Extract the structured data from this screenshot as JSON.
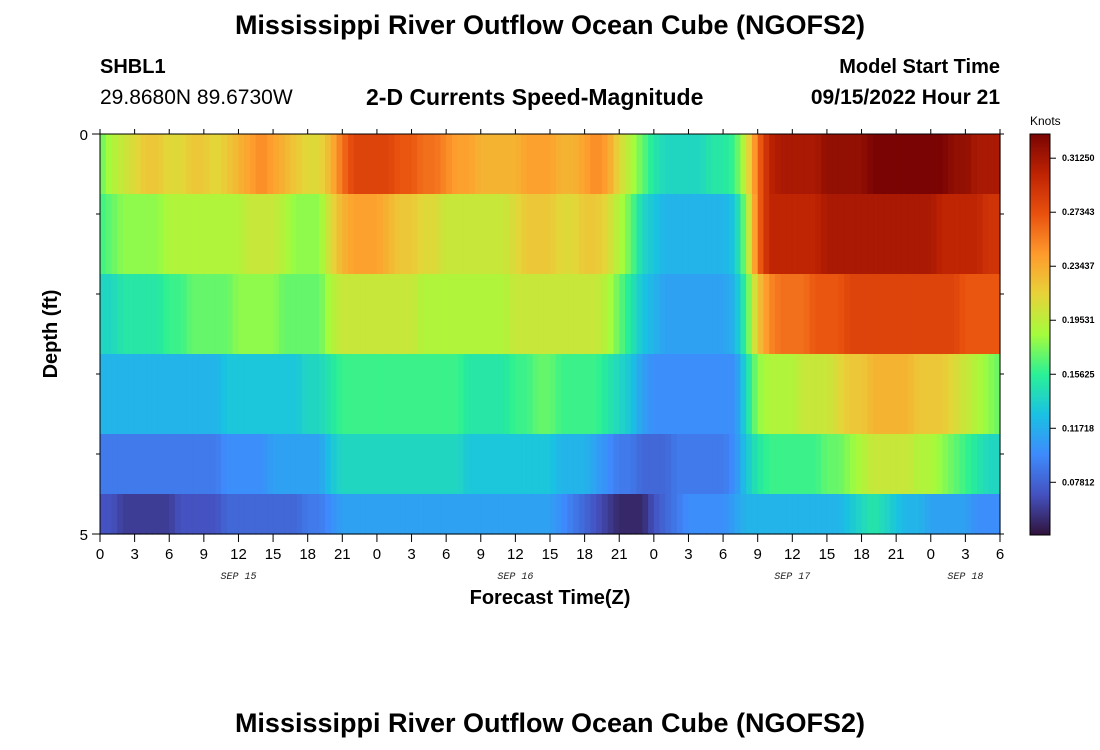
{
  "header": {
    "title": "Mississippi River Outflow Ocean Cube (NGOFS2)",
    "station": "SHBL1",
    "coords": "29.8680N  89.6730W",
    "subtitle": "2-D Currents Speed-Magnitude",
    "model_start_label": "Model Start Time",
    "model_start_value": "09/15/2022 Hour 21"
  },
  "footer": {
    "title": "Mississippi River Outflow Ocean Cube (NGOFS2)"
  },
  "chart_data": {
    "type": "heatmap",
    "xlabel": "Forecast Time(Z)",
    "ylabel": "Depth (ft)",
    "xlim_hours": [
      0,
      78
    ],
    "ylim": [
      0,
      5
    ],
    "y_ticks": [
      "0",
      "5"
    ],
    "x_ticks": [
      "0",
      "3",
      "6",
      "9",
      "12",
      "15",
      "18",
      "21",
      "0",
      "3",
      "6",
      "9",
      "12",
      "15",
      "18",
      "21",
      "0",
      "3",
      "6",
      "9",
      "12",
      "15",
      "18",
      "21",
      "0",
      "3",
      "6"
    ],
    "date_labels": [
      {
        "label": "SEP 15",
        "hour": 12
      },
      {
        "label": "SEP 16",
        "hour": 36
      },
      {
        "label": "SEP 17",
        "hour": 60
      },
      {
        "label": "SEP 18",
        "hour": 75
      }
    ],
    "colorbar": {
      "unit": "Knots",
      "min": 0.04,
      "max": 0.33,
      "colormap": "turbo",
      "ticks": [
        "0.07812",
        "0.11718",
        "0.15625",
        "0.19531",
        "0.23437",
        "0.27343",
        "0.31250"
      ],
      "tick_values": [
        0.07812,
        0.11718,
        0.15625,
        0.19531,
        0.23437,
        0.27343,
        0.3125
      ]
    },
    "layer_depths": [
      0.25,
      1.25,
      2.25,
      3.25,
      4.25,
      4.75
    ],
    "keyframe_hours": [
      0,
      1,
      2,
      3,
      4,
      5,
      6,
      7,
      8,
      9,
      10,
      11,
      12,
      13,
      14,
      15,
      16,
      17,
      18,
      19,
      20,
      21,
      22,
      23,
      24,
      25,
      26,
      27,
      28,
      29,
      30,
      31,
      32,
      33,
      34,
      35,
      36,
      37,
      38,
      39,
      40,
      41,
      42,
      43,
      44,
      45,
      46,
      47,
      48,
      49,
      50,
      51,
      52,
      53,
      54,
      55,
      56,
      57,
      58,
      59,
      60,
      61,
      62,
      63,
      64,
      65,
      66,
      67,
      68,
      69,
      70,
      71,
      72,
      73,
      74,
      75,
      76,
      77,
      78
    ],
    "layers": [
      [
        0.17,
        0.19,
        0.2,
        0.21,
        0.22,
        0.22,
        0.21,
        0.21,
        0.22,
        0.22,
        0.21,
        0.22,
        0.23,
        0.24,
        0.25,
        0.24,
        0.23,
        0.22,
        0.21,
        0.21,
        0.23,
        0.26,
        0.28,
        0.28,
        0.28,
        0.28,
        0.27,
        0.27,
        0.26,
        0.26,
        0.25,
        0.24,
        0.24,
        0.23,
        0.23,
        0.23,
        0.23,
        0.24,
        0.24,
        0.24,
        0.23,
        0.23,
        0.24,
        0.25,
        0.24,
        0.21,
        0.19,
        0.17,
        0.15,
        0.14,
        0.14,
        0.14,
        0.14,
        0.15,
        0.15,
        0.16,
        0.2,
        0.26,
        0.3,
        0.31,
        0.31,
        0.31,
        0.31,
        0.32,
        0.32,
        0.32,
        0.32,
        0.33,
        0.33,
        0.33,
        0.33,
        0.33,
        0.33,
        0.33,
        0.32,
        0.32,
        0.31,
        0.31,
        0.31
      ],
      [
        0.16,
        0.17,
        0.18,
        0.18,
        0.18,
        0.18,
        0.19,
        0.19,
        0.19,
        0.19,
        0.19,
        0.19,
        0.19,
        0.2,
        0.2,
        0.2,
        0.19,
        0.18,
        0.18,
        0.18,
        0.21,
        0.23,
        0.24,
        0.24,
        0.24,
        0.23,
        0.22,
        0.22,
        0.21,
        0.21,
        0.2,
        0.2,
        0.2,
        0.2,
        0.2,
        0.2,
        0.21,
        0.22,
        0.22,
        0.22,
        0.21,
        0.21,
        0.22,
        0.22,
        0.21,
        0.19,
        0.17,
        0.14,
        0.13,
        0.12,
        0.12,
        0.12,
        0.12,
        0.12,
        0.12,
        0.13,
        0.18,
        0.26,
        0.3,
        0.3,
        0.3,
        0.3,
        0.3,
        0.31,
        0.31,
        0.31,
        0.31,
        0.31,
        0.31,
        0.31,
        0.31,
        0.31,
        0.31,
        0.3,
        0.3,
        0.3,
        0.3,
        0.29,
        0.29
      ],
      [
        0.14,
        0.14,
        0.15,
        0.15,
        0.15,
        0.15,
        0.16,
        0.16,
        0.17,
        0.17,
        0.17,
        0.17,
        0.18,
        0.18,
        0.18,
        0.18,
        0.17,
        0.17,
        0.17,
        0.17,
        0.19,
        0.2,
        0.2,
        0.2,
        0.2,
        0.2,
        0.2,
        0.2,
        0.19,
        0.19,
        0.19,
        0.19,
        0.19,
        0.19,
        0.19,
        0.19,
        0.2,
        0.2,
        0.2,
        0.2,
        0.2,
        0.2,
        0.2,
        0.2,
        0.19,
        0.17,
        0.15,
        0.13,
        0.12,
        0.11,
        0.11,
        0.11,
        0.11,
        0.11,
        0.11,
        0.12,
        0.16,
        0.22,
        0.25,
        0.26,
        0.26,
        0.26,
        0.27,
        0.27,
        0.27,
        0.28,
        0.28,
        0.28,
        0.28,
        0.28,
        0.28,
        0.28,
        0.28,
        0.28,
        0.28,
        0.27,
        0.27,
        0.27,
        0.27
      ],
      [
        0.12,
        0.12,
        0.12,
        0.12,
        0.12,
        0.12,
        0.12,
        0.12,
        0.12,
        0.12,
        0.12,
        0.13,
        0.13,
        0.13,
        0.13,
        0.13,
        0.13,
        0.13,
        0.14,
        0.14,
        0.15,
        0.16,
        0.16,
        0.16,
        0.16,
        0.16,
        0.16,
        0.16,
        0.16,
        0.16,
        0.16,
        0.16,
        0.15,
        0.15,
        0.15,
        0.15,
        0.16,
        0.16,
        0.17,
        0.17,
        0.16,
        0.16,
        0.16,
        0.16,
        0.15,
        0.14,
        0.13,
        0.11,
        0.1,
        0.1,
        0.1,
        0.1,
        0.1,
        0.1,
        0.1,
        0.1,
        0.14,
        0.18,
        0.19,
        0.19,
        0.19,
        0.2,
        0.2,
        0.2,
        0.21,
        0.22,
        0.22,
        0.23,
        0.23,
        0.23,
        0.23,
        0.22,
        0.22,
        0.22,
        0.21,
        0.2,
        0.19,
        0.18,
        0.17
      ],
      [
        0.09,
        0.09,
        0.09,
        0.09,
        0.09,
        0.09,
        0.09,
        0.09,
        0.09,
        0.09,
        0.09,
        0.1,
        0.1,
        0.1,
        0.1,
        0.11,
        0.11,
        0.11,
        0.11,
        0.11,
        0.13,
        0.14,
        0.14,
        0.14,
        0.14,
        0.14,
        0.14,
        0.14,
        0.14,
        0.14,
        0.14,
        0.14,
        0.13,
        0.13,
        0.13,
        0.13,
        0.13,
        0.13,
        0.13,
        0.13,
        0.12,
        0.12,
        0.12,
        0.11,
        0.1,
        0.09,
        0.09,
        0.08,
        0.08,
        0.08,
        0.09,
        0.09,
        0.09,
        0.09,
        0.09,
        0.1,
        0.13,
        0.15,
        0.16,
        0.16,
        0.16,
        0.16,
        0.16,
        0.17,
        0.17,
        0.18,
        0.19,
        0.2,
        0.2,
        0.2,
        0.2,
        0.19,
        0.19,
        0.18,
        0.17,
        0.16,
        0.15,
        0.14,
        0.14
      ],
      [
        0.07,
        0.07,
        0.06,
        0.06,
        0.06,
        0.06,
        0.06,
        0.07,
        0.07,
        0.07,
        0.07,
        0.08,
        0.08,
        0.08,
        0.08,
        0.08,
        0.08,
        0.08,
        0.09,
        0.09,
        0.1,
        0.11,
        0.11,
        0.11,
        0.11,
        0.11,
        0.11,
        0.11,
        0.11,
        0.11,
        0.11,
        0.11,
        0.11,
        0.11,
        0.11,
        0.11,
        0.11,
        0.11,
        0.11,
        0.11,
        0.1,
        0.09,
        0.08,
        0.07,
        0.06,
        0.05,
        0.05,
        0.05,
        0.07,
        0.08,
        0.09,
        0.1,
        0.1,
        0.1,
        0.1,
        0.11,
        0.12,
        0.12,
        0.12,
        0.12,
        0.12,
        0.12,
        0.12,
        0.12,
        0.12,
        0.13,
        0.14,
        0.15,
        0.14,
        0.13,
        0.12,
        0.12,
        0.11,
        0.11,
        0.11,
        0.11,
        0.1,
        0.1,
        0.1
      ]
    ]
  }
}
